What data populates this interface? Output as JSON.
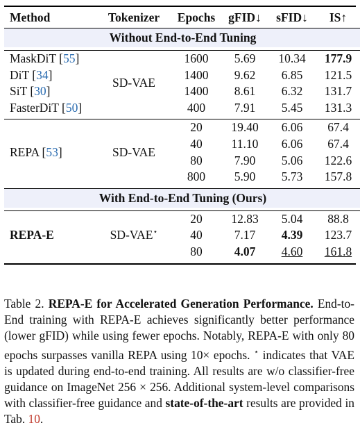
{
  "table": {
    "headers": {
      "method": "Method",
      "tokenizer": "Tokenizer",
      "epochs": "Epochs",
      "gfid": "gFID↓",
      "sfid": "sFID↓",
      "is": "IS↑"
    },
    "section1": "Without End-to-End Tuning",
    "group1": {
      "tokenizer": "SD-VAE",
      "rows": [
        {
          "name": "MaskDiT",
          "cite": "55",
          "epochs": "1600",
          "gfid": "5.69",
          "sfid": "10.34",
          "is": "177.9"
        },
        {
          "name": "DiT",
          "cite": "34",
          "epochs": "1400",
          "gfid": "9.62",
          "sfid": "6.85",
          "is": "121.5"
        },
        {
          "name": "SiT",
          "cite": "30",
          "epochs": "1400",
          "gfid": "8.61",
          "sfid": "6.32",
          "is": "131.7"
        },
        {
          "name": "FasterDiT",
          "cite": "50",
          "epochs": "400",
          "gfid": "7.91",
          "sfid": "5.45",
          "is": "131.3"
        }
      ]
    },
    "group2": {
      "name": "REPA",
      "cite": "53",
      "tokenizer": "SD-VAE",
      "rows": [
        {
          "epochs": "20",
          "gfid": "19.40",
          "sfid": "6.06",
          "is": "67.4"
        },
        {
          "epochs": "40",
          "gfid": "11.10",
          "sfid": "6.06",
          "is": "67.4"
        },
        {
          "epochs": "80",
          "gfid": "7.90",
          "sfid": "5.06",
          "is": "122.6"
        },
        {
          "epochs": "800",
          "gfid": "5.90",
          "sfid": "5.73",
          "is": "157.8"
        }
      ]
    },
    "section2": "With End-to-End Tuning (Ours)",
    "group3": {
      "name": "REPA-E",
      "tokenizer": "SD-VAE",
      "tokenizer_mark": "⋆",
      "rows": [
        {
          "epochs": "20",
          "gfid": "12.83",
          "sfid": "5.04",
          "is": "88.8"
        },
        {
          "epochs": "40",
          "gfid": "7.17",
          "sfid": "4.39",
          "is": "123.7"
        },
        {
          "epochs": "80",
          "gfid": "4.07",
          "sfid": "4.60",
          "is": "161.8"
        }
      ]
    }
  },
  "caption": {
    "label": "Table 2.",
    "title": "REPA-E for Accelerated Generation Performance.",
    "text1": " End-to-End training with REPA-E achieves significantly better performance (lower gFID) while using fewer epochs. Notably, REPA-E with only 80 epochs surpasses vanilla REPA using 10× epochs. ",
    "star": "⋆",
    "text2": " indicates that VAE is updated during end-to-end training. All results are w/o classifier-free guidance on ImageNet 256 × 256. Additional system-level comparisons with classifier-free guidance and ",
    "bold2": "state-of-the-art",
    "text3": " results are provided in Tab. ",
    "ref": "10",
    "end": "."
  }
}
